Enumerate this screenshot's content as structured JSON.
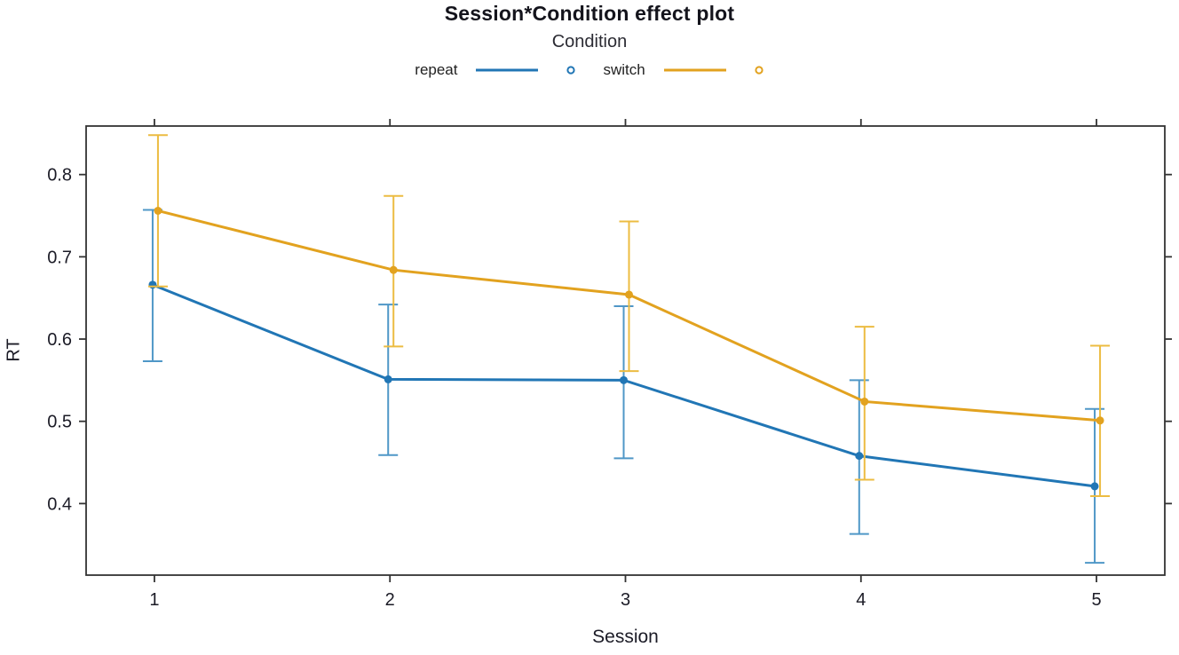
{
  "chart_data": {
    "type": "line",
    "title": "Session*Condition effect plot",
    "xlabel": "Session",
    "ylabel": "RT",
    "legend": {
      "title": "Condition",
      "position": "top-center"
    },
    "x": [
      1,
      2,
      3,
      4,
      5
    ],
    "x_tick_labels": [
      "1",
      "2",
      "3",
      "4",
      "5"
    ],
    "y_ticks": [
      0.4,
      0.5,
      0.6,
      0.7,
      0.8
    ],
    "y_tick_labels": [
      "0.4",
      "0.5",
      "0.6",
      "0.7",
      "0.8"
    ],
    "xlim": [
      0.71,
      5.29
    ],
    "ylim": [
      0.313,
      0.859
    ],
    "grid": false,
    "frame_color": "#333333",
    "series": [
      {
        "name": "repeat",
        "color": "#2176b5",
        "errorbar_color": "#4f97c7",
        "marker": "circle",
        "values": [
          0.666,
          0.551,
          0.55,
          0.458,
          0.421
        ],
        "ci_lower": [
          0.573,
          0.459,
          0.455,
          0.363,
          0.328
        ],
        "ci_upper": [
          0.757,
          0.642,
          0.64,
          0.55,
          0.515
        ]
      },
      {
        "name": "switch",
        "color": "#e2a21f",
        "errorbar_color": "#ecbc42",
        "marker": "circle",
        "values": [
          0.756,
          0.684,
          0.654,
          0.524,
          0.501
        ],
        "ci_lower": [
          0.664,
          0.591,
          0.561,
          0.429,
          0.409
        ],
        "ci_upper": [
          0.848,
          0.774,
          0.743,
          0.615,
          0.592
        ]
      }
    ]
  }
}
